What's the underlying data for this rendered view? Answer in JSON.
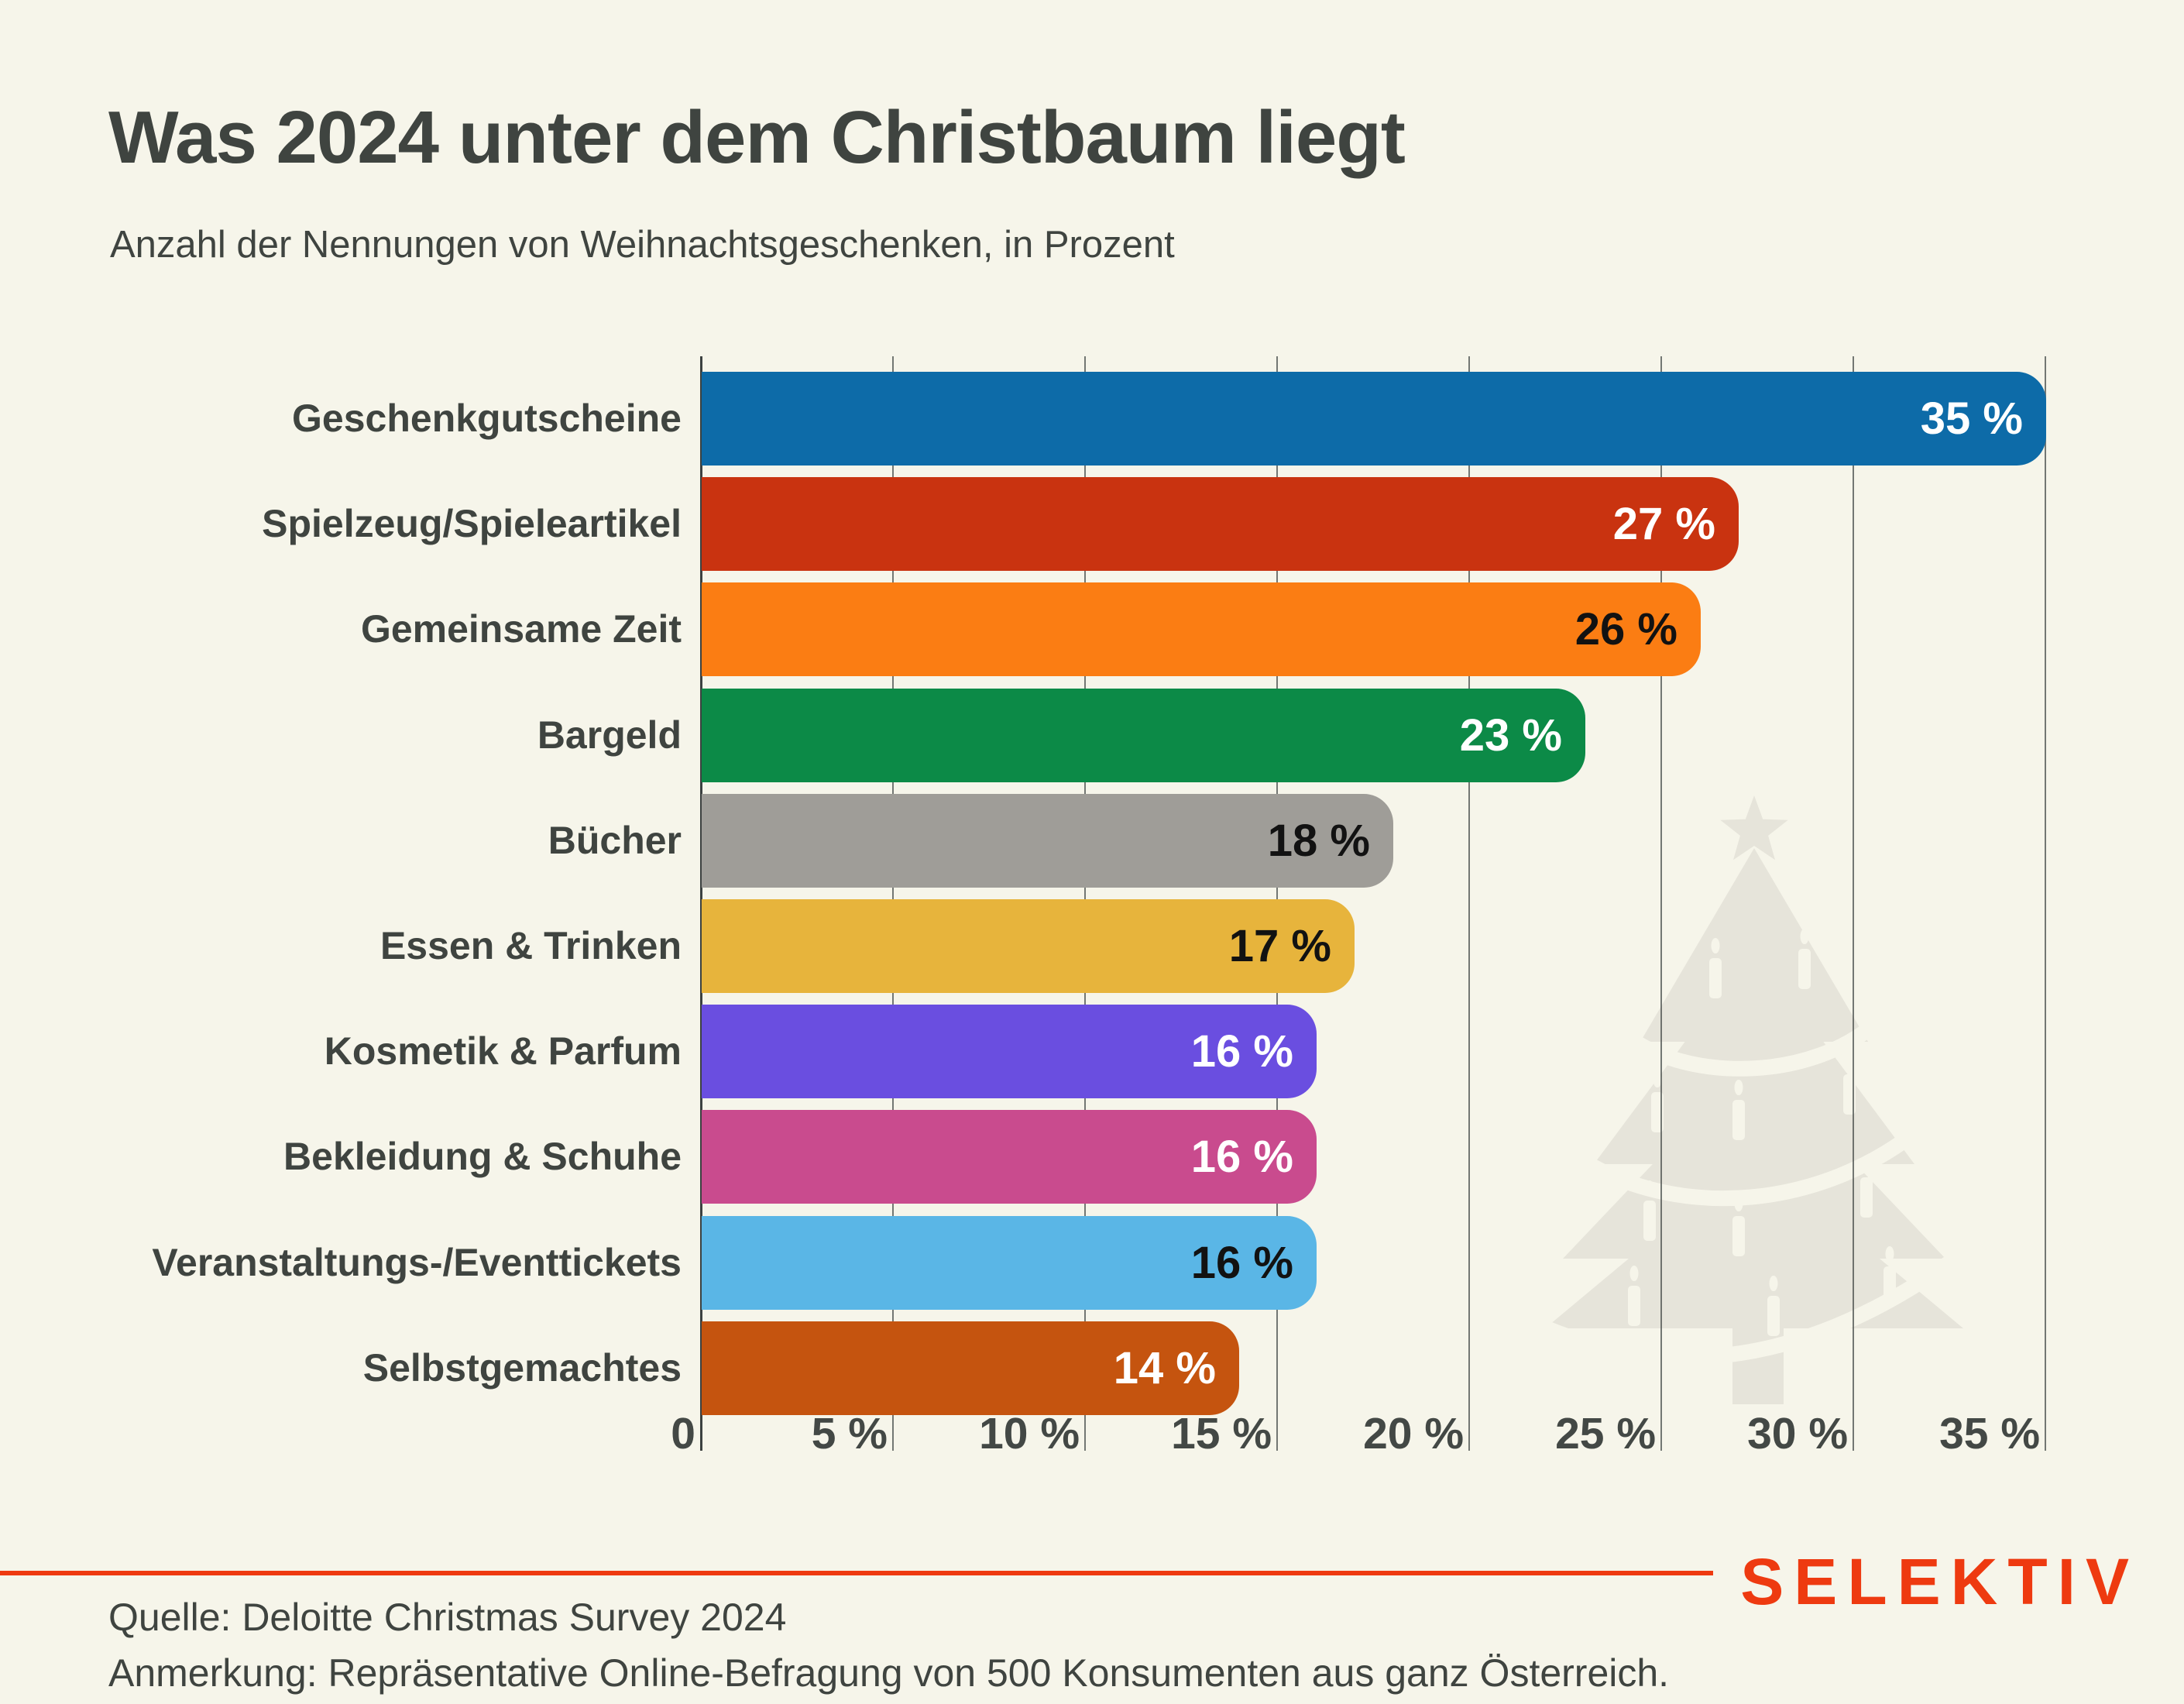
{
  "chart_data": {
    "type": "bar",
    "orientation": "horizontal",
    "title": "Was 2024 unter dem Christbaum liegt",
    "subtitle": "Anzahl der Nennungen von Weihnachtsgeschenken, in Prozent",
    "categories": [
      "Geschenkgutscheine",
      "Spielzeug/Spieleartikel",
      "Gemeinsame Zeit",
      "Bargeld",
      "Bücher",
      "Essen & Trinken",
      "Kosmetik & Parfum",
      "Bekleidung & Schuhe",
      "Veranstaltungs-/Eventtickets",
      "Selbstgemachtes"
    ],
    "values": [
      35,
      27,
      26,
      23,
      18,
      17,
      16,
      16,
      16,
      14
    ],
    "value_labels": [
      "35 %",
      "27 %",
      "26 %",
      "23 %",
      "18 %",
      "17 %",
      "16 %",
      "16 %",
      "16 %",
      "14 %"
    ],
    "bar_colors": [
      "#0d6ba8",
      "#c93310",
      "#fb7d13",
      "#0c8a47",
      "#9f9d98",
      "#e7b43c",
      "#6a4ee0",
      "#c94b8e",
      "#5ab6e6",
      "#c5540f"
    ],
    "value_label_colors": [
      "#ffffff",
      "#ffffff",
      "#121212",
      "#ffffff",
      "#121212",
      "#121212",
      "#ffffff",
      "#ffffff",
      "#121212",
      "#ffffff"
    ],
    "x_ticks": [
      0,
      5,
      10,
      15,
      20,
      25,
      30,
      35
    ],
    "x_tick_labels": [
      "0",
      "5 %",
      "10 %",
      "15 %",
      "20 %",
      "25 %",
      "30 %",
      "35 %"
    ],
    "xlim": [
      0,
      35
    ],
    "grid": true,
    "legend": false
  },
  "watermark": {
    "icon": "christmas-tree-icon",
    "color": "#e6e4da"
  },
  "footer": {
    "source": "Quelle: Deloitte Christmas Survey 2024",
    "note": "Anmerkung: Repräsentative Online-Befragung von 500 Konsumenten aus ganz Österreich.",
    "logo_text": "SELEKTIV",
    "accent_color": "#ee3a10"
  },
  "theme": {
    "background": "#f6f5ea",
    "text_color": "#3f4440",
    "grid_color": "#3c4140"
  }
}
